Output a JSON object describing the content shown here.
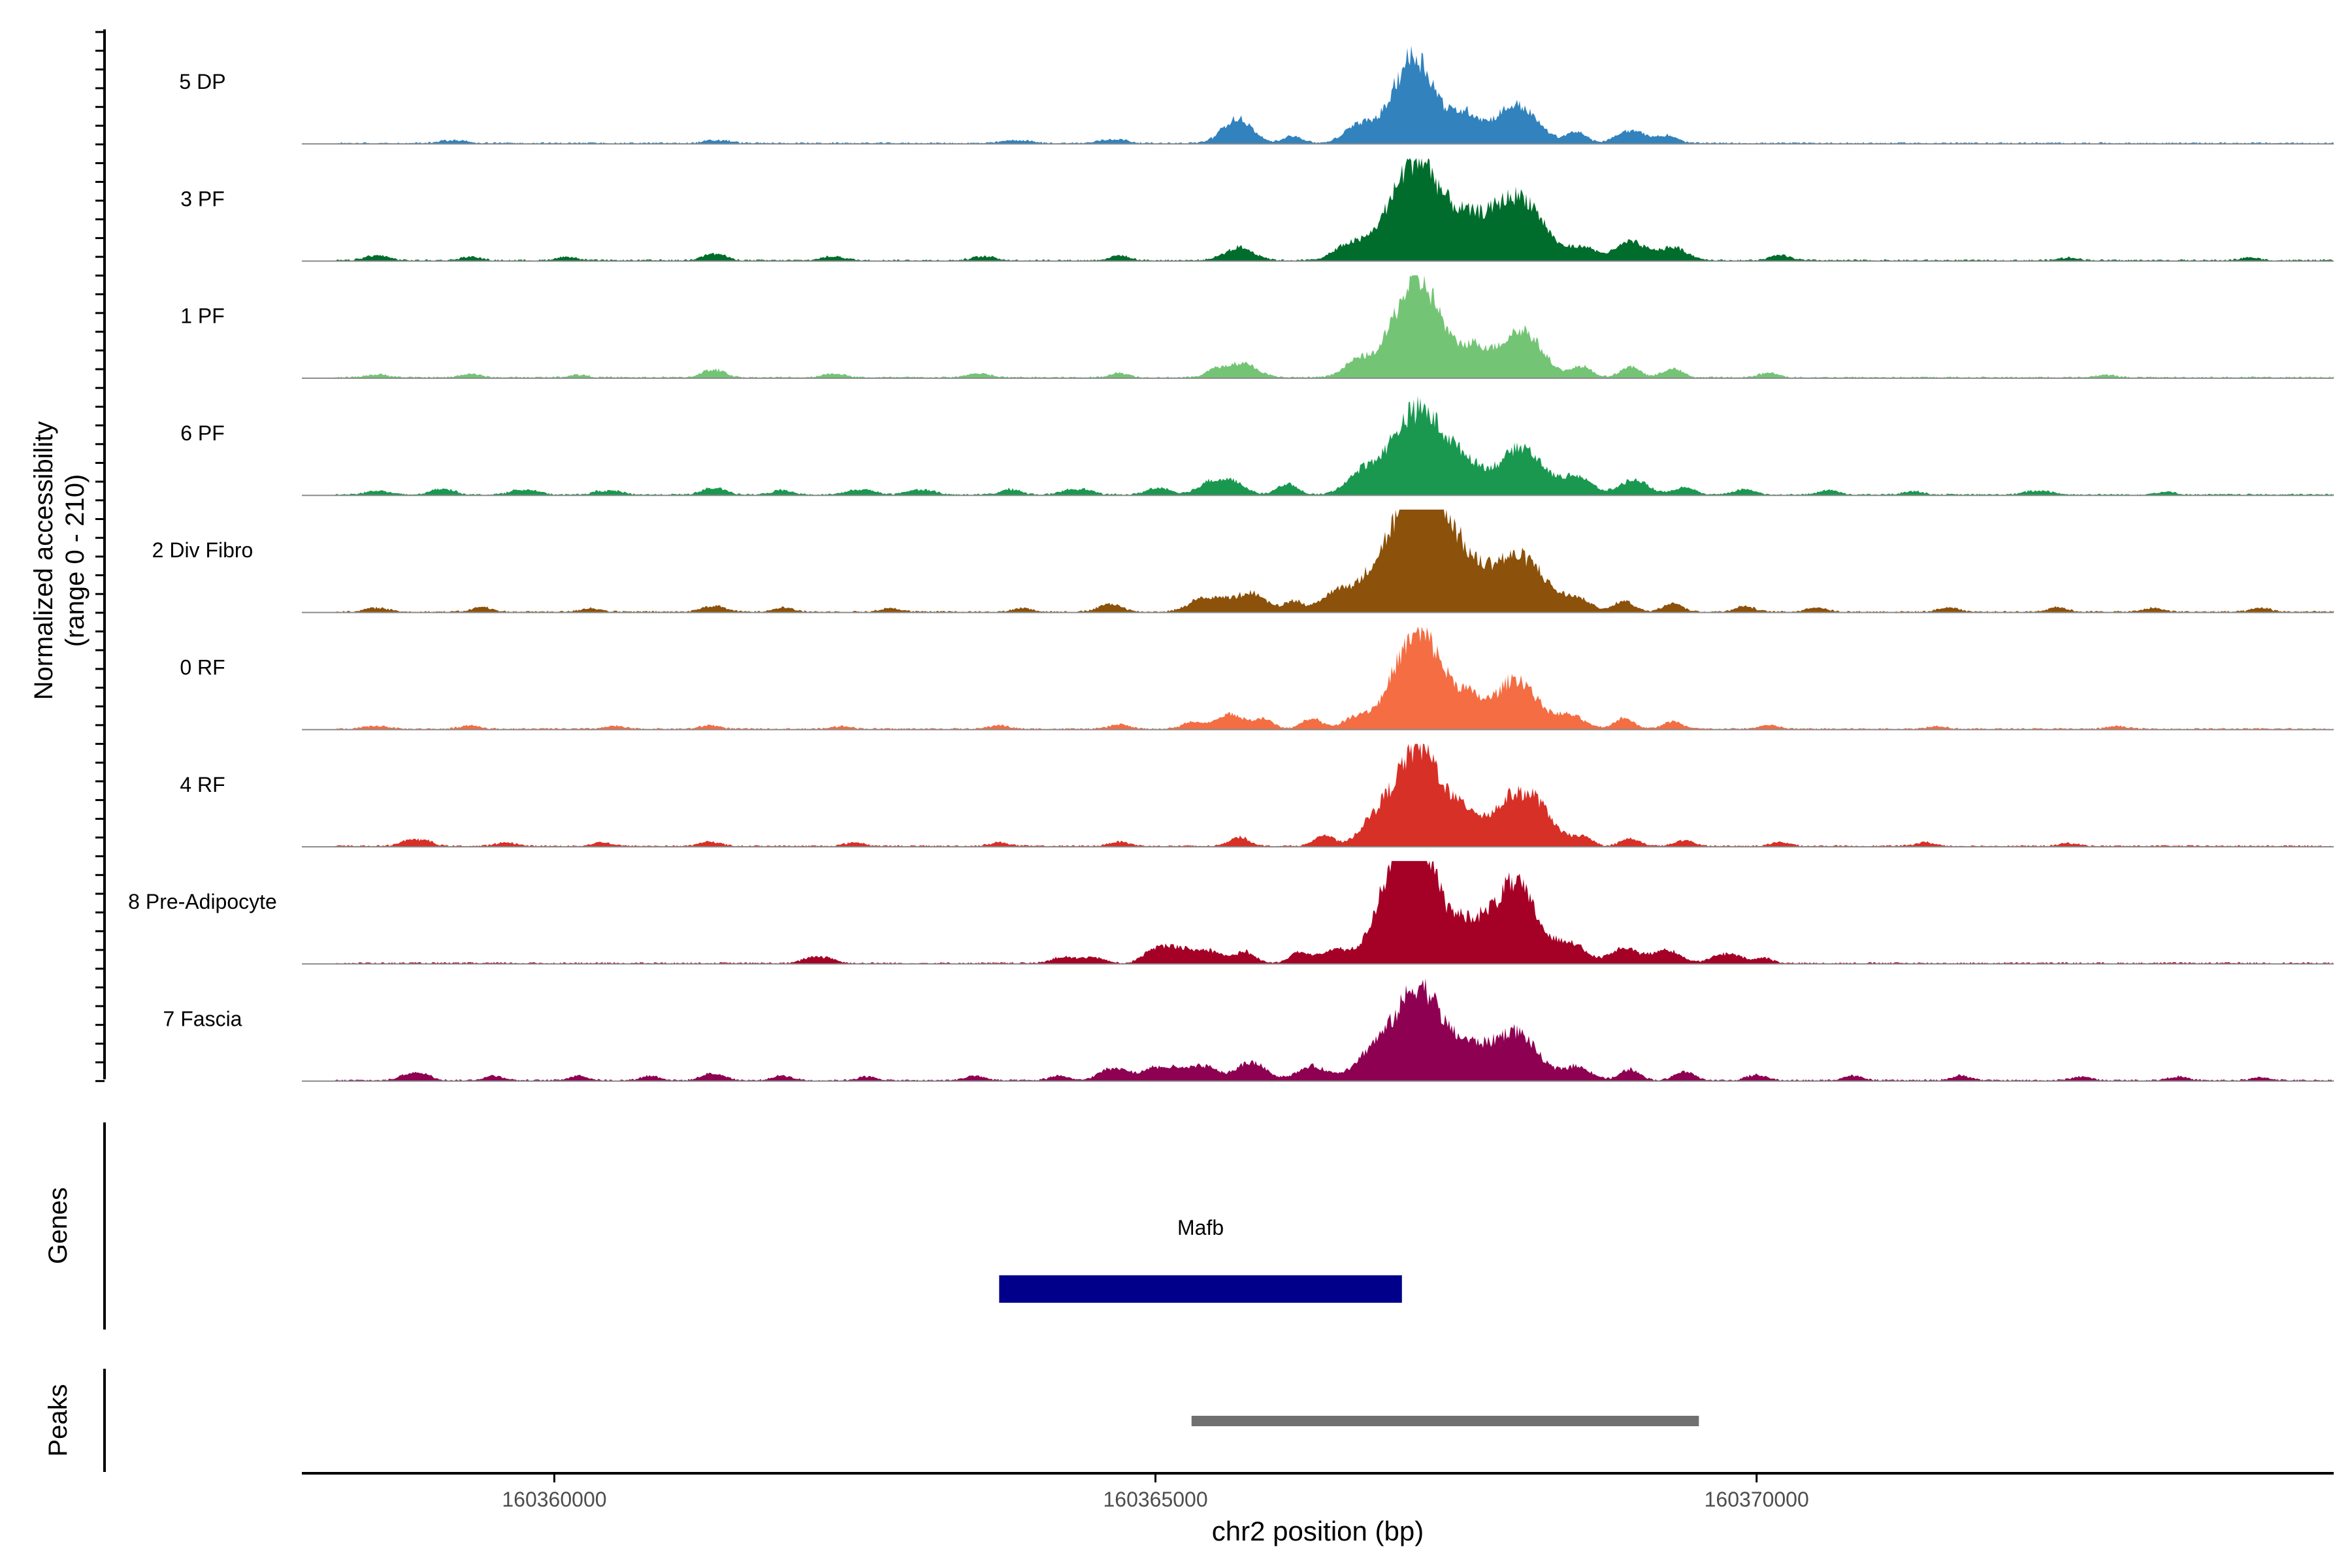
{
  "chart_data": {
    "type": "area",
    "genome": "chr2",
    "xlabel": "chr2 position (bp)",
    "ylabel_line1": "Normalized accessibility",
    "ylabel_line2": "(range 0 - 210)",
    "y_range": [
      0,
      210
    ],
    "x_range": [
      160357900,
      160374800
    ],
    "x_ticks": [
      160360000,
      160365000,
      160370000
    ],
    "x_tick_labels": [
      "160360000",
      "160365000",
      "160370000"
    ],
    "tracks": [
      {
        "name": "5 DP",
        "color": "#3182BD",
        "scale": 1.0,
        "bumps": [
          [
            160359120,
            160359200,
            0.03
          ],
          [
            160361320,
            160361400,
            0.03
          ],
          [
            160363800,
            160363900,
            0.03
          ],
          [
            160364600,
            160364700,
            0.04
          ],
          [
            160365680,
            160365680,
            0.27
          ],
          [
            160366140,
            160366140,
            0.08
          ],
          [
            160366700,
            160366700,
            0.2
          ],
          [
            160367150,
            160367150,
            0.96
          ],
          [
            160367580,
            160367580,
            0.3
          ],
          [
            160368000,
            160368000,
            0.42
          ],
          [
            160368500,
            160368500,
            0.12
          ],
          [
            160368960,
            160368960,
            0.14
          ],
          [
            160369260,
            160369260,
            0.08
          ]
        ]
      },
      {
        "name": "3 PF",
        "color": "#006D2C",
        "scale": 1.0,
        "bumps": [
          [
            160358500,
            160358550,
            0.05
          ],
          [
            160359300,
            160359300,
            0.04
          ],
          [
            160360100,
            160360100,
            0.04
          ],
          [
            160361300,
            160361350,
            0.07
          ],
          [
            160362300,
            160362350,
            0.04
          ],
          [
            160363550,
            160363600,
            0.04
          ],
          [
            160364700,
            160364700,
            0.05
          ],
          [
            160365700,
            160365700,
            0.14
          ],
          [
            160366600,
            160366600,
            0.15
          ],
          [
            160366950,
            160366950,
            0.32
          ],
          [
            160367200,
            160367200,
            0.98
          ],
          [
            160367600,
            160367600,
            0.45
          ],
          [
            160367860,
            160367860,
            0.2
          ],
          [
            160368070,
            160368070,
            0.63
          ],
          [
            160368550,
            160368550,
            0.14
          ],
          [
            160368950,
            160368950,
            0.2
          ],
          [
            160369300,
            160369300,
            0.14
          ],
          [
            160370200,
            160370200,
            0.06
          ],
          [
            160372600,
            160372600,
            0.03
          ],
          [
            160374100,
            160374100,
            0.03
          ]
        ]
      },
      {
        "name": "1 PF",
        "color": "#74C476",
        "scale": 1.0,
        "bumps": [
          [
            160358500,
            160358550,
            0.03
          ],
          [
            160359300,
            160359300,
            0.04
          ],
          [
            160360200,
            160360200,
            0.03
          ],
          [
            160361300,
            160361350,
            0.08
          ],
          [
            160362300,
            160362350,
            0.04
          ],
          [
            160363500,
            160363550,
            0.04
          ],
          [
            160364700,
            160364700,
            0.05
          ],
          [
            160365500,
            160365500,
            0.08
          ],
          [
            160365720,
            160365720,
            0.16
          ],
          [
            160366700,
            160366700,
            0.2
          ],
          [
            160367000,
            160367000,
            0.3
          ],
          [
            160367220,
            160367220,
            0.98
          ],
          [
            160367650,
            160367650,
            0.3
          ],
          [
            160368040,
            160368040,
            0.52
          ],
          [
            160368550,
            160368550,
            0.12
          ],
          [
            160368950,
            160368950,
            0.12
          ],
          [
            160369300,
            160369300,
            0.1
          ],
          [
            160370100,
            160370100,
            0.05
          ],
          [
            160372900,
            160372900,
            0.03
          ]
        ]
      },
      {
        "name": "6 PF",
        "color": "#1A9850",
        "scale": 1.0,
        "bumps": [
          [
            160358500,
            160358550,
            0.04
          ],
          [
            160359050,
            160359100,
            0.06
          ],
          [
            160359700,
            160359800,
            0.05
          ],
          [
            160360400,
            160360500,
            0.04
          ],
          [
            160361300,
            160361350,
            0.07
          ],
          [
            160361900,
            160361900,
            0.05
          ],
          [
            160362500,
            160362600,
            0.05
          ],
          [
            160363000,
            160363100,
            0.05
          ],
          [
            160363800,
            160363800,
            0.06
          ],
          [
            160364300,
            160364400,
            0.06
          ],
          [
            160365000,
            160365050,
            0.07
          ],
          [
            160365500,
            160365600,
            0.17
          ],
          [
            160366100,
            160366100,
            0.12
          ],
          [
            160366700,
            160366700,
            0.2
          ],
          [
            160367000,
            160367000,
            0.38
          ],
          [
            160367230,
            160367230,
            0.72
          ],
          [
            160367560,
            160367560,
            0.35
          ],
          [
            160368050,
            160368050,
            0.52
          ],
          [
            160368500,
            160368500,
            0.2
          ],
          [
            160368980,
            160368980,
            0.16
          ],
          [
            160369400,
            160369400,
            0.08
          ],
          [
            160369900,
            160369900,
            0.06
          ],
          [
            160370600,
            160370600,
            0.05
          ],
          [
            160371300,
            160371300,
            0.04
          ],
          [
            160372300,
            160372400,
            0.04
          ],
          [
            160373400,
            160373400,
            0.03
          ]
        ]
      },
      {
        "name": "2 Div Fibro",
        "color": "#8C510A",
        "scale": 1.0,
        "bumps": [
          [
            160358500,
            160358550,
            0.04
          ],
          [
            160359400,
            160359400,
            0.05
          ],
          [
            160360300,
            160360300,
            0.04
          ],
          [
            160361300,
            160361350,
            0.06
          ],
          [
            160361900,
            160361900,
            0.05
          ],
          [
            160362800,
            160362800,
            0.04
          ],
          [
            160363900,
            160363900,
            0.04
          ],
          [
            160364600,
            160364650,
            0.08
          ],
          [
            160365400,
            160365500,
            0.15
          ],
          [
            160365800,
            160365800,
            0.2
          ],
          [
            160366150,
            160366150,
            0.12
          ],
          [
            160366500,
            160366500,
            0.2
          ],
          [
            160366850,
            160366850,
            0.4
          ],
          [
            160367120,
            160367120,
            0.72
          ],
          [
            160367300,
            160367300,
            0.98
          ],
          [
            160367600,
            160367600,
            0.42
          ],
          [
            160367850,
            160367850,
            0.2
          ],
          [
            160368080,
            160368080,
            0.55
          ],
          [
            160368500,
            160368500,
            0.14
          ],
          [
            160368900,
            160368900,
            0.12
          ],
          [
            160369300,
            160369300,
            0.1
          ],
          [
            160369900,
            160369900,
            0.06
          ],
          [
            160370500,
            160370500,
            0.05
          ],
          [
            160371600,
            160371600,
            0.05
          ],
          [
            160372500,
            160372500,
            0.05
          ],
          [
            160373300,
            160373300,
            0.04
          ],
          [
            160374200,
            160374200,
            0.04
          ]
        ]
      },
      {
        "name": "0 RF",
        "color": "#F46D43",
        "scale": 1.0,
        "bumps": [
          [
            160358500,
            160358550,
            0.03
          ],
          [
            160359300,
            160359300,
            0.04
          ],
          [
            160360500,
            160360500,
            0.03
          ],
          [
            160361300,
            160361300,
            0.04
          ],
          [
            160362400,
            160362400,
            0.03
          ],
          [
            160363700,
            160363700,
            0.04
          ],
          [
            160364700,
            160364700,
            0.05
          ],
          [
            160365300,
            160365300,
            0.07
          ],
          [
            160365620,
            160365620,
            0.16
          ],
          [
            160365900,
            160365900,
            0.1
          ],
          [
            160366300,
            160366300,
            0.12
          ],
          [
            160366700,
            160366700,
            0.15
          ],
          [
            160367000,
            160367000,
            0.3
          ],
          [
            160367230,
            160367230,
            0.98
          ],
          [
            160367600,
            160367600,
            0.3
          ],
          [
            160368000,
            160368000,
            0.55
          ],
          [
            160368450,
            160368450,
            0.14
          ],
          [
            160368900,
            160368900,
            0.12
          ],
          [
            160369300,
            160369300,
            0.08
          ],
          [
            160370100,
            160370100,
            0.04
          ],
          [
            160371500,
            160371500,
            0.03
          ],
          [
            160373000,
            160373000,
            0.03
          ]
        ]
      },
      {
        "name": "4 RF",
        "color": "#D73027",
        "scale": 1.0,
        "bumps": [
          [
            160358800,
            160358900,
            0.07
          ],
          [
            160359600,
            160359600,
            0.04
          ],
          [
            160360400,
            160360400,
            0.04
          ],
          [
            160361300,
            160361300,
            0.05
          ],
          [
            160362500,
            160362500,
            0.04
          ],
          [
            160363700,
            160363700,
            0.04
          ],
          [
            160364700,
            160364700,
            0.05
          ],
          [
            160365700,
            160365700,
            0.1
          ],
          [
            160366400,
            160366400,
            0.12
          ],
          [
            160366800,
            160366800,
            0.18
          ],
          [
            160367050,
            160367050,
            0.45
          ],
          [
            160367250,
            160367250,
            0.82
          ],
          [
            160367600,
            160367600,
            0.3
          ],
          [
            160368000,
            160368100,
            0.58
          ],
          [
            160368550,
            160368550,
            0.1
          ],
          [
            160368950,
            160368950,
            0.08
          ],
          [
            160369400,
            160369400,
            0.06
          ],
          [
            160370200,
            160370200,
            0.04
          ],
          [
            160371400,
            160371400,
            0.04
          ],
          [
            160372600,
            160372600,
            0.03
          ]
        ]
      },
      {
        "name": "8 Pre-Adipocyte",
        "color": "#A50026",
        "scale": 1.0,
        "bumps": [
          [
            160362150,
            160362250,
            0.07
          ],
          [
            160364200,
            160364250,
            0.06
          ],
          [
            160364450,
            160364500,
            0.06
          ],
          [
            160364960,
            160364960,
            0.1
          ],
          [
            160365150,
            160365150,
            0.18
          ],
          [
            160365450,
            160365450,
            0.14
          ],
          [
            160365750,
            160365750,
            0.12
          ],
          [
            160366200,
            160366200,
            0.12
          ],
          [
            160366500,
            160366500,
            0.15
          ],
          [
            160366850,
            160366850,
            0.2
          ],
          [
            160367070,
            160367070,
            0.72
          ],
          [
            160367170,
            160367170,
            0.98
          ],
          [
            160367600,
            160367600,
            0.42
          ],
          [
            160368000,
            160368000,
            0.85
          ],
          [
            160368450,
            160368450,
            0.22
          ],
          [
            160368900,
            160368900,
            0.16
          ],
          [
            160369250,
            160369250,
            0.14
          ],
          [
            160369700,
            160369800,
            0.1
          ],
          [
            160370050,
            160370050,
            0.06
          ]
        ]
      },
      {
        "name": "7 Fascia",
        "color": "#8E0152",
        "scale": 1.0,
        "bumps": [
          [
            160358800,
            160358900,
            0.08
          ],
          [
            160359500,
            160359500,
            0.05
          ],
          [
            160360200,
            160360200,
            0.05
          ],
          [
            160360800,
            160360800,
            0.05
          ],
          [
            160361300,
            160361350,
            0.07
          ],
          [
            160361900,
            160361900,
            0.05
          ],
          [
            160362600,
            160362600,
            0.04
          ],
          [
            160363500,
            160363500,
            0.05
          ],
          [
            160364200,
            160364200,
            0.05
          ],
          [
            160364600,
            160364700,
            0.12
          ],
          [
            160365000,
            160365100,
            0.14
          ],
          [
            160365400,
            160365400,
            0.15
          ],
          [
            160365800,
            160365800,
            0.2
          ],
          [
            160366300,
            160366300,
            0.15
          ],
          [
            160366850,
            160366850,
            0.35
          ],
          [
            160367200,
            160367200,
            0.98
          ],
          [
            160367600,
            160367600,
            0.35
          ],
          [
            160368000,
            160368000,
            0.52
          ],
          [
            160368500,
            160368500,
            0.15
          ],
          [
            160368950,
            160368950,
            0.12
          ],
          [
            160369400,
            160369400,
            0.1
          ],
          [
            160370000,
            160370000,
            0.06
          ],
          [
            160370800,
            160370800,
            0.05
          ],
          [
            160371700,
            160371700,
            0.05
          ],
          [
            160372700,
            160372700,
            0.04
          ],
          [
            160373500,
            160373500,
            0.04
          ],
          [
            160374200,
            160374200,
            0.03
          ]
        ]
      }
    ],
    "genes_label": "Genes",
    "genes": [
      {
        "name": "Mafb",
        "start": 160363700,
        "end": 160367050,
        "color": "#00008B"
      }
    ],
    "peaks_label": "Peaks",
    "peaks": [
      {
        "start": 160365300,
        "end": 160369520,
        "color": "#707070"
      }
    ]
  }
}
